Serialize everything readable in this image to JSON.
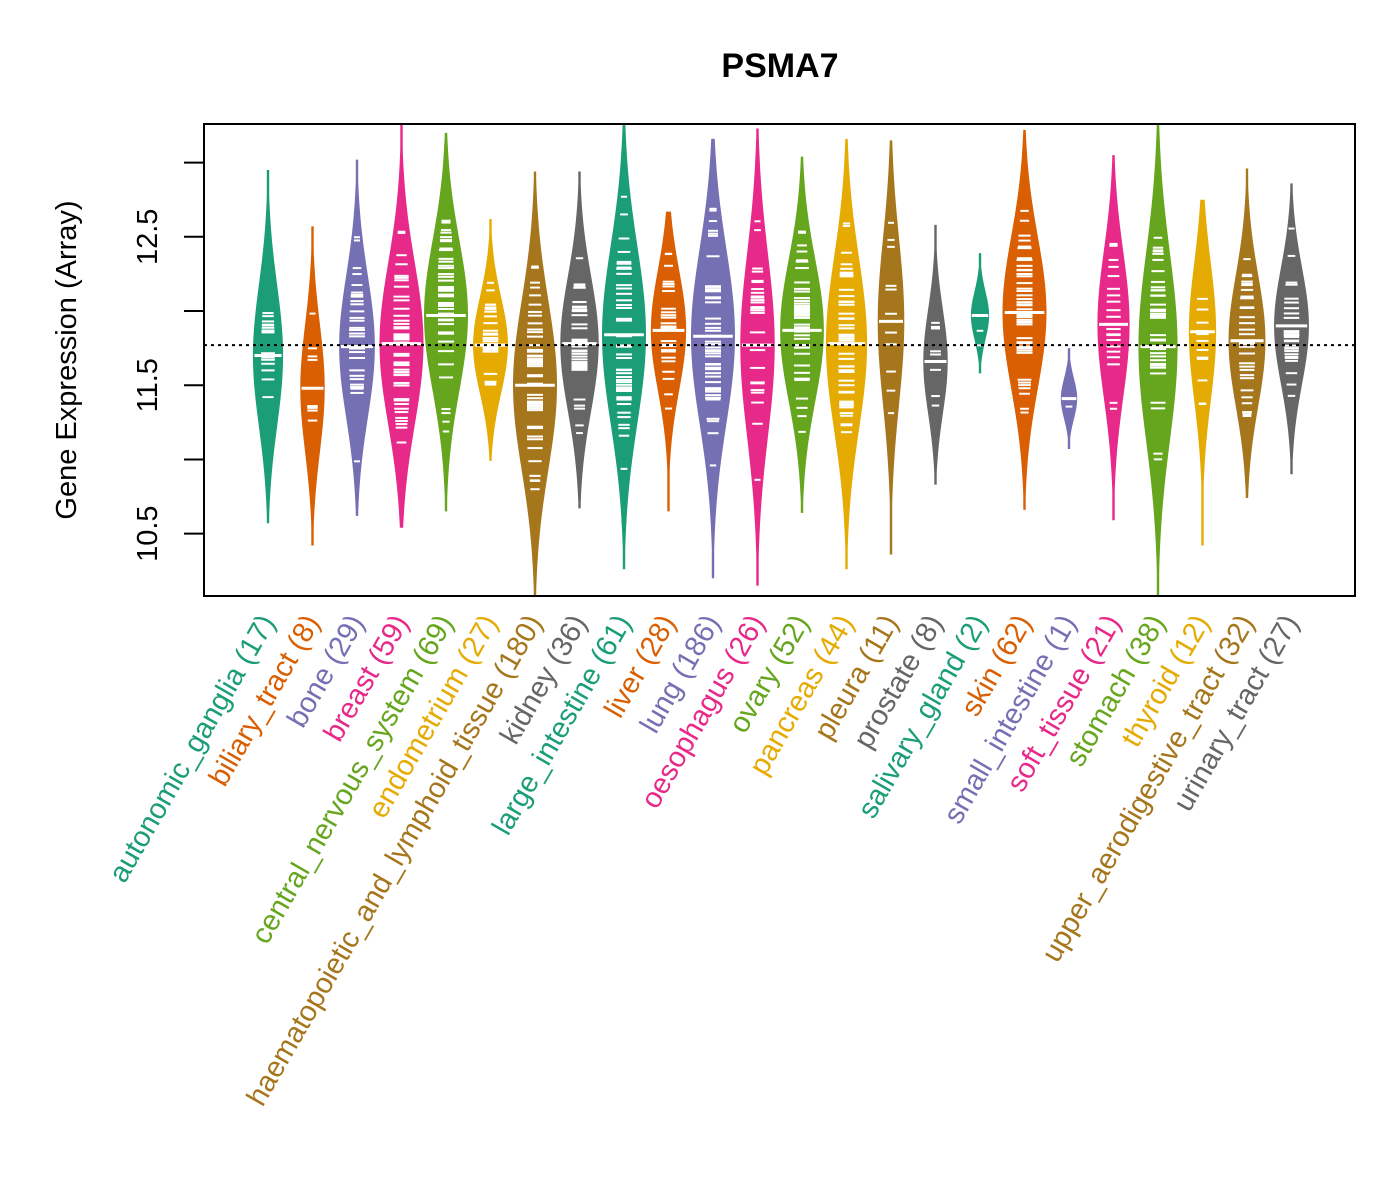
{
  "chart_data": {
    "type": "violin",
    "title": "PSMA7",
    "xlabel": "",
    "ylabel": "Gene Expression (Array)",
    "ylim": [
      10.08,
      13.26
    ],
    "yticks": [
      10.5,
      11.0,
      11.5,
      12.0,
      12.5,
      13.0
    ],
    "ytick_labels": [
      "10.5",
      "",
      "11.5",
      "",
      "12.5",
      ""
    ],
    "reference_line": {
      "value": 11.77,
      "style": "dotted",
      "color": "#000000"
    },
    "grid": false,
    "legend": "none",
    "categories": [
      {
        "name": "autonomic_ganglia",
        "n": 17,
        "label": "autonomic_ganglia (17)",
        "color": "#1B9E77",
        "min": 10.57,
        "max": 12.95,
        "median": 11.7
      },
      {
        "name": "biliary_tract",
        "n": 8,
        "label": "biliary_tract (8)",
        "color": "#D95F02",
        "min": 10.42,
        "max": 12.57,
        "median": 11.48
      },
      {
        "name": "bone",
        "n": 29,
        "label": "bone (29)",
        "color": "#7570B3",
        "min": 10.62,
        "max": 13.02,
        "median": 11.76
      },
      {
        "name": "breast",
        "n": 59,
        "label": "breast (59)",
        "color": "#E7298A",
        "min": 10.54,
        "max": 13.26,
        "median": 11.78
      },
      {
        "name": "central_nervous_system",
        "n": 69,
        "label": "central_nervous_system (69)",
        "color": "#66A61E",
        "min": 10.65,
        "max": 13.2,
        "median": 11.97
      },
      {
        "name": "endometrium",
        "n": 27,
        "label": "endometrium (27)",
        "color": "#E6AB02",
        "min": 10.99,
        "max": 12.62,
        "median": 11.77
      },
      {
        "name": "haematopoietic_and_lymphoid_tissue",
        "n": 180,
        "label": "haematopoietic_and_lymphoid_tissue (180)",
        "color": "#A6761D",
        "min": 10.08,
        "max": 12.94,
        "median": 11.5
      },
      {
        "name": "kidney",
        "n": 36,
        "label": "kidney (36)",
        "color": "#666666",
        "min": 10.67,
        "max": 12.94,
        "median": 11.78
      },
      {
        "name": "large_intestine",
        "n": 61,
        "label": "large_intestine (61)",
        "color": "#1B9E77",
        "min": 10.26,
        "max": 13.26,
        "median": 11.84
      },
      {
        "name": "liver",
        "n": 28,
        "label": "liver (28)",
        "color": "#D95F02",
        "min": 10.65,
        "max": 12.67,
        "median": 11.87
      },
      {
        "name": "lung",
        "n": 186,
        "label": "lung (186)",
        "color": "#7570B3",
        "min": 10.2,
        "max": 13.16,
        "median": 11.83
      },
      {
        "name": "oesophagus",
        "n": 26,
        "label": "oesophagus (26)",
        "color": "#E7298A",
        "min": 10.15,
        "max": 13.23,
        "median": 11.77
      },
      {
        "name": "ovary",
        "n": 52,
        "label": "ovary (52)",
        "color": "#66A61E",
        "min": 10.64,
        "max": 13.04,
        "median": 11.87
      },
      {
        "name": "pancreas",
        "n": 44,
        "label": "pancreas (44)",
        "color": "#E6AB02",
        "min": 10.26,
        "max": 13.16,
        "median": 11.78
      },
      {
        "name": "pleura",
        "n": 11,
        "label": "pleura (11)",
        "color": "#A6761D",
        "min": 10.36,
        "max": 13.15,
        "median": 11.93
      },
      {
        "name": "prostate",
        "n": 8,
        "label": "prostate (8)",
        "color": "#666666",
        "min": 10.83,
        "max": 12.58,
        "median": 11.66
      },
      {
        "name": "salivary_gland",
        "n": 2,
        "label": "salivary_gland (2)",
        "color": "#1B9E77",
        "min": 11.58,
        "max": 12.39,
        "median": 11.97
      },
      {
        "name": "skin",
        "n": 62,
        "label": "skin (62)",
        "color": "#D95F02",
        "min": 10.66,
        "max": 13.22,
        "median": 11.99
      },
      {
        "name": "small_intestine",
        "n": 1,
        "label": "small_intestine (1)",
        "color": "#7570B3",
        "min": 11.07,
        "max": 11.75,
        "median": 11.41
      },
      {
        "name": "soft_tissue",
        "n": 21,
        "label": "soft_tissue (21)",
        "color": "#E7298A",
        "min": 10.59,
        "max": 13.05,
        "median": 11.91
      },
      {
        "name": "stomach",
        "n": 38,
        "label": "stomach (38)",
        "color": "#66A61E",
        "min": 10.08,
        "max": 13.26,
        "median": 11.76
      },
      {
        "name": "thyroid",
        "n": 12,
        "label": "thyroid (12)",
        "color": "#E6AB02",
        "min": 10.42,
        "max": 12.75,
        "median": 11.86
      },
      {
        "name": "upper_aerodigestive_tract",
        "n": 32,
        "label": "upper_aerodigestive_tract (32)",
        "color": "#A6761D",
        "min": 10.74,
        "max": 12.96,
        "median": 11.8
      },
      {
        "name": "urinary_tract",
        "n": 27,
        "label": "urinary_tract (27)",
        "color": "#666666",
        "min": 10.9,
        "max": 12.86,
        "median": 11.9
      }
    ]
  }
}
